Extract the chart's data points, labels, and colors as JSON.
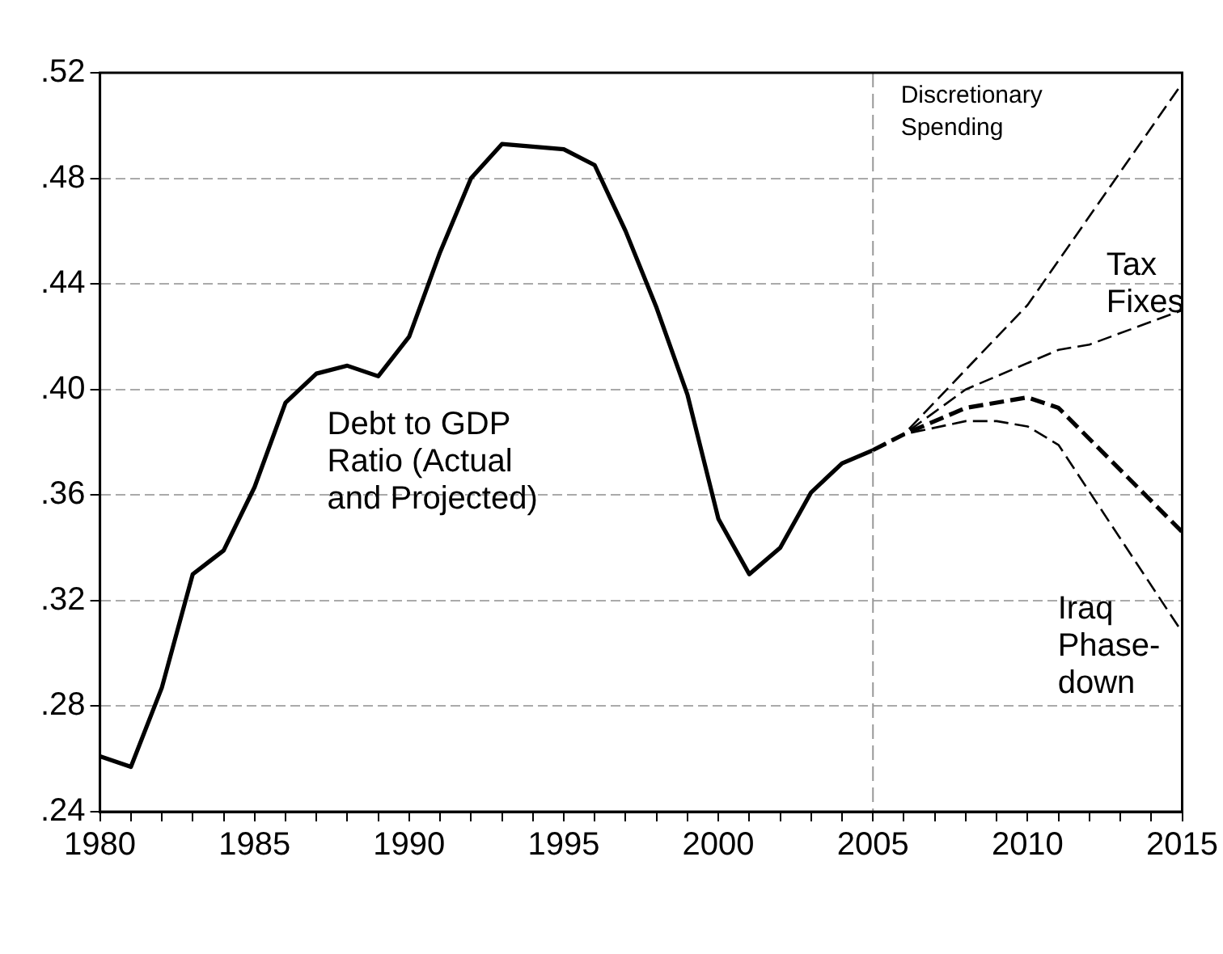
{
  "chart_data": {
    "type": "line",
    "xlim": [
      1980,
      2015
    ],
    "ylim": [
      0.24,
      0.52
    ],
    "xticks": [
      1980,
      {
        "value": 1981,
        "label": null
      },
      {
        "value": 1982,
        "label": null
      },
      {
        "value": 1983,
        "label": null
      },
      {
        "value": 1984,
        "label": null
      },
      1985,
      {
        "value": 1986,
        "label": null
      },
      {
        "value": 1987,
        "label": null
      },
      {
        "value": 1988,
        "label": null
      },
      {
        "value": 1989,
        "label": null
      },
      1990,
      {
        "value": 1991,
        "label": null
      },
      {
        "value": 1992,
        "label": null
      },
      {
        "value": 1993,
        "label": null
      },
      {
        "value": 1994,
        "label": null
      },
      1995,
      {
        "value": 1996,
        "label": null
      },
      {
        "value": 1997,
        "label": null
      },
      {
        "value": 1998,
        "label": null
      },
      {
        "value": 1999,
        "label": null
      },
      2000,
      {
        "value": 2001,
        "label": null
      },
      {
        "value": 2002,
        "label": null
      },
      {
        "value": 2003,
        "label": null
      },
      {
        "value": 2004,
        "label": null
      },
      2005,
      {
        "value": 2006,
        "label": null
      },
      {
        "value": 2007,
        "label": null
      },
      {
        "value": 2008,
        "label": null
      },
      {
        "value": 2009,
        "label": null
      },
      2010,
      {
        "value": 2011,
        "label": null
      },
      {
        "value": 2012,
        "label": null
      },
      {
        "value": 2013,
        "label": null
      },
      {
        "value": 2014,
        "label": null
      },
      2015
    ],
    "yticks": [
      {
        "value": 0.24,
        "label": ".24"
      },
      {
        "value": 0.28,
        "label": ".28"
      },
      {
        "value": 0.32,
        "label": ".32"
      },
      {
        "value": 0.36,
        "label": ".36"
      },
      {
        "value": 0.4,
        "label": ".40"
      },
      {
        "value": 0.44,
        "label": ".44"
      },
      {
        "value": 0.48,
        "label": ".48"
      },
      {
        "value": 0.52,
        "label": ".52"
      }
    ],
    "grid": "y",
    "legend": false,
    "marker": "none",
    "series": [
      {
        "color": "#000000",
        "line_style": "solid",
        "x": [
          1980,
          1981,
          1982,
          1983,
          1984,
          1985,
          1986,
          1987,
          1988,
          1989,
          1990,
          1991,
          1992,
          1993,
          1994,
          1995,
          1996,
          1997,
          1998,
          1999,
          2000,
          2001,
          2002,
          2003,
          2004,
          2005
        ],
        "values": [
          0.261,
          0.257,
          0.287,
          0.33,
          0.339,
          0.363,
          0.395,
          0.406,
          0.409,
          0.405,
          0.42,
          0.452,
          0.48,
          0.493,
          0.492,
          0.491,
          0.485,
          0.46,
          0.431,
          0.398,
          0.351,
          0.33,
          0.34,
          0.361,
          0.372,
          0.377
        ]
      },
      {
        "color": "#000000",
        "line_style": "dashed",
        "x": [
          2005,
          2006,
          2010,
          2015
        ],
        "values": [
          0.377,
          0.383,
          0.432,
          0.516
        ]
      },
      {
        "color": "#000000",
        "line_style": "dashed",
        "x": [
          2005,
          2006,
          2008,
          2011,
          2012,
          2015
        ],
        "values": [
          0.377,
          0.383,
          0.4,
          0.415,
          0.417,
          0.43
        ]
      },
      {
        "color": "#000000",
        "line_style": "dashed",
        "x": [
          2005,
          2006,
          2008,
          2010,
          2011,
          2015
        ],
        "values": [
          0.377,
          0.383,
          0.393,
          0.397,
          0.393,
          0.346
        ]
      },
      {
        "color": "#000000",
        "line_style": "dashed",
        "x": [
          2005,
          2006,
          2008,
          2009,
          2010,
          2011,
          2015
        ],
        "values": [
          0.377,
          0.383,
          0.388,
          0.388,
          0.386,
          0.379,
          0.308
        ]
      }
    ],
    "ref_lines": [
      {
        "axis": "x",
        "value": 2005,
        "color": "#999999",
        "line_style": "dashed"
      }
    ],
    "annotations": [
      "Debt to GDP\nRatio (Actual\nand Projected)",
      "Discretionary\nSpending",
      "Tax\nFixes",
      "Iraq\nPhase-\ndown"
    ]
  }
}
